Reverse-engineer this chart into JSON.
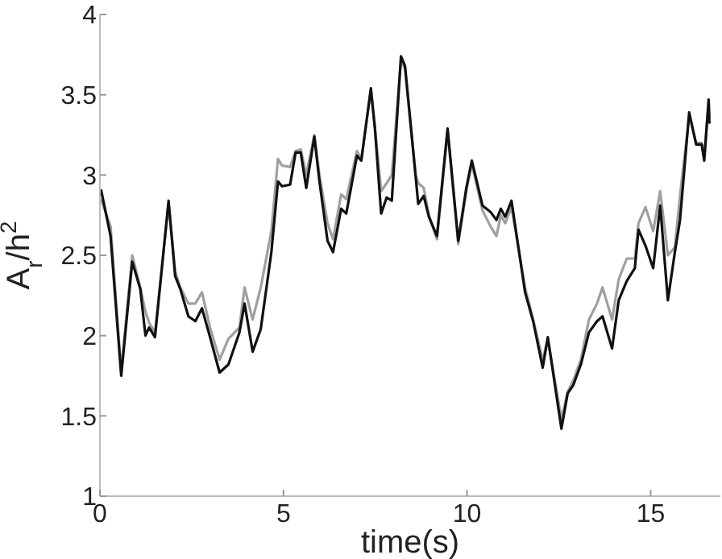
{
  "chart_data": {
    "type": "line",
    "xlabel": "time(s)",
    "ylabel": "A$_{r}$/h$^{2}$",
    "xlim": [
      0,
      16.9
    ],
    "xticks": [
      0,
      5,
      10,
      15
    ],
    "ylim": [
      1,
      4
    ],
    "yticks": [
      1,
      1.5,
      2,
      2.5,
      3,
      3.5,
      4
    ],
    "marker": "none",
    "line_style": "solid",
    "series": [
      {
        "color": "#a0a0a0",
        "x": [
          0.03,
          0.29,
          0.58,
          0.88,
          1.1,
          1.24,
          1.34,
          1.5,
          1.87,
          2.05,
          2.19,
          2.41,
          2.6,
          2.78,
          3.0,
          3.26,
          3.5,
          3.8,
          3.94,
          4.16,
          4.38,
          4.67,
          4.85,
          4.96,
          5.18,
          5.33,
          5.47,
          5.62,
          5.84,
          5.98,
          6.2,
          6.35,
          6.57,
          6.71,
          7.0,
          7.12,
          7.38,
          7.49,
          7.66,
          7.81,
          7.95,
          8.2,
          8.31,
          8.6,
          8.67,
          8.82,
          8.96,
          9.18,
          9.47,
          9.76,
          9.98,
          10.13,
          10.42,
          10.64,
          10.8,
          10.92,
          11.04,
          11.21,
          11.58,
          11.8,
          12.06,
          12.2,
          12.57,
          12.74,
          12.89,
          13.1,
          13.32,
          13.54,
          13.69,
          13.95,
          14.13,
          14.35,
          14.57,
          14.67,
          14.86,
          15.07,
          15.26,
          15.47,
          15.66,
          15.8,
          16.05,
          16.24,
          16.39,
          16.46,
          16.58,
          16.6
        ],
        "values": [
          2.85,
          2.68,
          1.78,
          2.5,
          2.3,
          2.15,
          2.08,
          2.02,
          2.82,
          2.4,
          2.3,
          2.2,
          2.2,
          2.27,
          2.05,
          1.85,
          1.98,
          2.05,
          2.3,
          2.1,
          2.3,
          2.65,
          3.1,
          3.06,
          3.05,
          3.15,
          3.16,
          3.0,
          3.25,
          3.0,
          2.7,
          2.6,
          2.88,
          2.85,
          3.15,
          3.1,
          3.53,
          3.3,
          2.9,
          2.95,
          3.0,
          3.72,
          3.66,
          3.0,
          2.95,
          2.92,
          2.75,
          2.6,
          3.27,
          2.57,
          2.9,
          3.07,
          2.78,
          2.68,
          2.62,
          2.75,
          2.7,
          2.8,
          2.3,
          2.1,
          1.85,
          1.98,
          1.48,
          1.65,
          1.72,
          1.85,
          2.1,
          2.2,
          2.3,
          2.1,
          2.35,
          2.48,
          2.48,
          2.7,
          2.8,
          2.65,
          2.9,
          2.5,
          2.55,
          2.87,
          3.37,
          3.2,
          3.2,
          3.12,
          3.45,
          3.35
        ]
      },
      {
        "color": "#111111",
        "x": [
          0.03,
          0.29,
          0.58,
          0.88,
          1.1,
          1.24,
          1.34,
          1.5,
          1.87,
          2.05,
          2.19,
          2.41,
          2.6,
          2.78,
          3.0,
          3.26,
          3.5,
          3.8,
          3.94,
          4.16,
          4.38,
          4.67,
          4.85,
          4.96,
          5.18,
          5.33,
          5.47,
          5.62,
          5.84,
          5.98,
          6.2,
          6.35,
          6.57,
          6.71,
          7.0,
          7.12,
          7.38,
          7.49,
          7.66,
          7.81,
          7.95,
          8.2,
          8.31,
          8.6,
          8.67,
          8.82,
          8.96,
          9.18,
          9.47,
          9.76,
          9.98,
          10.13,
          10.42,
          10.64,
          10.8,
          10.92,
          11.04,
          11.21,
          11.58,
          11.8,
          12.06,
          12.2,
          12.57,
          12.74,
          12.89,
          13.1,
          13.32,
          13.54,
          13.69,
          13.95,
          14.13,
          14.35,
          14.57,
          14.67,
          14.86,
          15.07,
          15.26,
          15.47,
          15.66,
          15.8,
          16.05,
          16.24,
          16.39,
          16.46,
          16.58,
          16.6
        ],
        "values": [
          2.91,
          2.62,
          1.75,
          2.46,
          2.29,
          2.0,
          2.05,
          1.99,
          2.84,
          2.37,
          2.29,
          2.12,
          2.09,
          2.17,
          1.99,
          1.77,
          1.82,
          2.02,
          2.2,
          1.9,
          2.04,
          2.52,
          2.96,
          2.93,
          2.94,
          3.14,
          3.14,
          2.92,
          3.24,
          2.96,
          2.59,
          2.52,
          2.79,
          2.76,
          3.12,
          3.09,
          3.54,
          3.29,
          2.76,
          2.86,
          2.84,
          3.74,
          3.68,
          2.99,
          2.82,
          2.87,
          2.74,
          2.62,
          3.29,
          2.59,
          2.92,
          3.09,
          2.81,
          2.77,
          2.72,
          2.79,
          2.74,
          2.84,
          2.27,
          2.09,
          1.8,
          1.99,
          1.42,
          1.64,
          1.69,
          1.82,
          2.02,
          2.09,
          2.12,
          1.92,
          2.22,
          2.34,
          2.42,
          2.66,
          2.56,
          2.42,
          2.81,
          2.22,
          2.52,
          2.72,
          3.39,
          3.19,
          3.19,
          3.09,
          3.47,
          3.32
        ]
      }
    ]
  }
}
